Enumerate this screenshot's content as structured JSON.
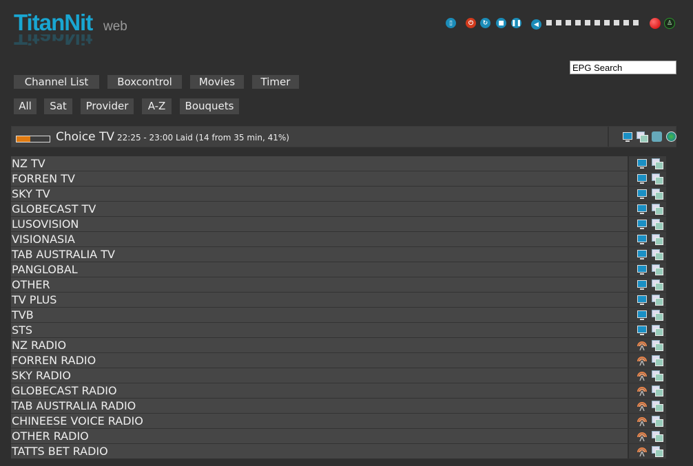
{
  "logo": {
    "brand": "TitanNit",
    "suffix": "web"
  },
  "controls": {
    "icons": [
      "remote-icon",
      "power-icon",
      "restart-icon",
      "stop-icon",
      "pause-icon",
      "volume-icon"
    ],
    "volume_steps": 10,
    "record": "record-icon",
    "signal": "signal-icon",
    "colors": {
      "accent": "#19a6d2",
      "power": "#d13a1c",
      "record": "#e00000",
      "signal": "#2c9a2c"
    }
  },
  "search": {
    "placeholder": "EPG Search"
  },
  "menu": [
    {
      "label": "Channel List"
    },
    {
      "label": "Boxcontrol"
    },
    {
      "label": "Movies"
    },
    {
      "label": "Timer"
    }
  ],
  "filters": [
    {
      "label": "All"
    },
    {
      "label": "Sat"
    },
    {
      "label": "Provider"
    },
    {
      "label": "A-Z"
    },
    {
      "label": "Bouquets"
    }
  ],
  "current": {
    "channel": "Choice TV",
    "info": "22:25 - 23:00 Laid (14 from 35 min, 41%)",
    "progress_percent": 41,
    "icons": [
      "tv-icon",
      "epg-icon",
      "record-file-icon",
      "globe-icon"
    ]
  },
  "bouquets": [
    {
      "name": "NZ TV",
      "type": "tv"
    },
    {
      "name": "FORREN TV",
      "type": "tv"
    },
    {
      "name": "SKY TV",
      "type": "tv"
    },
    {
      "name": "GLOBECAST TV",
      "type": "tv"
    },
    {
      "name": "LUSOVISION",
      "type": "tv"
    },
    {
      "name": "VISIONASIA",
      "type": "tv"
    },
    {
      "name": "TAB AUSTRALIA TV",
      "type": "tv"
    },
    {
      "name": "PANGLOBAL",
      "type": "tv"
    },
    {
      "name": "OTHER",
      "type": "tv"
    },
    {
      "name": "TV PLUS",
      "type": "tv"
    },
    {
      "name": "TVB",
      "type": "tv"
    },
    {
      "name": "STS",
      "type": "tv"
    },
    {
      "name": "NZ RADIO",
      "type": "radio"
    },
    {
      "name": "FORREN RADIO",
      "type": "radio"
    },
    {
      "name": "SKY RADIO",
      "type": "radio"
    },
    {
      "name": "GLOBECAST RADIO",
      "type": "radio"
    },
    {
      "name": "TAB AUSTRALIA RADIO",
      "type": "radio"
    },
    {
      "name": "CHINEESE VOICE RADIO",
      "type": "radio"
    },
    {
      "name": "OTHER RADIO",
      "type": "radio"
    },
    {
      "name": "TATTS BET RADIO",
      "type": "radio"
    }
  ]
}
